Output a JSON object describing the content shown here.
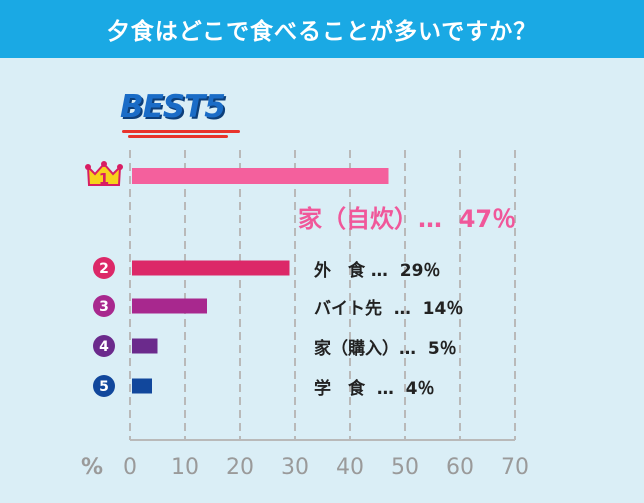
{
  "header": {
    "title": "夕食はどこで食べることが多いですか？"
  },
  "best_label": "BEST5",
  "axis": {
    "unit": "%"
  },
  "chart_data": {
    "type": "bar",
    "orientation": "horizontal",
    "title": "夕食はどこで食べることが多いですか？",
    "categories": [
      "家（自炊）",
      "外食",
      "バイト先",
      "家（購入）",
      "学食"
    ],
    "values": [
      47,
      29,
      14,
      5,
      4
    ],
    "xlim": [
      0,
      70
    ],
    "x_ticks": [
      0,
      10,
      20,
      30,
      40,
      50,
      60,
      70
    ],
    "grid": "vertical-dashed",
    "ranks": [
      "1",
      "2",
      "3",
      "4",
      "5"
    ],
    "colors": [
      "#f4609d",
      "#dc2868",
      "#a8288e",
      "#6b2a8c",
      "#11479c"
    ],
    "labels": [
      "家（自炊）…  47％",
      "外　食 …  29％",
      "バイト先  …  14％",
      "家（購入）…  5％",
      "学　食  …  4％"
    ]
  },
  "colors": {
    "header": "#1aa9e4",
    "background": "#daeef6",
    "best": "#1a6cc7"
  }
}
